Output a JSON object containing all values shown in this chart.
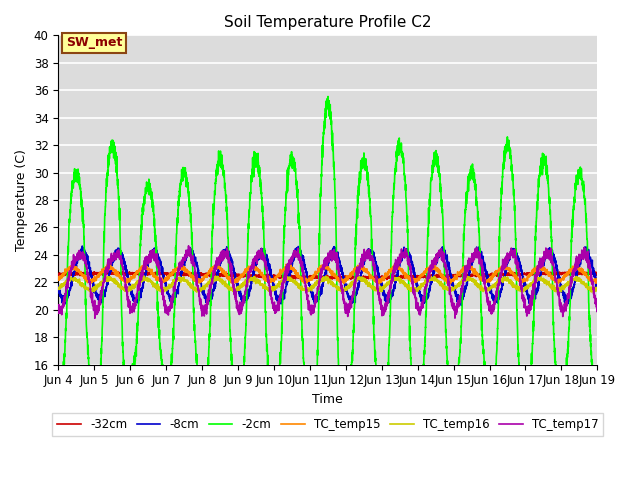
{
  "title": "Soil Temperature Profile C2",
  "xlabel": "Time",
  "ylabel": "Temperature (C)",
  "ylim": [
    16,
    40
  ],
  "xlim": [
    0,
    360
  ],
  "background_color": "#dcdcdc",
  "grid_color": "#ffffff",
  "annotation_text": "SW_met",
  "annotation_bg": "#ffff99",
  "annotation_border": "#8b4513",
  "tick_labels": [
    "Jun 4",
    "Jun 5",
    "Jun 6",
    "Jun 7",
    "Jun 8",
    "Jun 9",
    "Jun 10",
    "Jun 11",
    "Jun 12",
    "Jun 13",
    "Jun 14",
    "Jun 15",
    "Jun 16",
    "Jun 17",
    "Jun 18",
    "Jun 19"
  ],
  "tick_positions": [
    0,
    24,
    48,
    72,
    96,
    120,
    144,
    168,
    192,
    216,
    240,
    264,
    288,
    312,
    336,
    360
  ],
  "series": {
    "-32cm": {
      "color": "#cc0000",
      "linewidth": 1.2
    },
    "-8cm": {
      "color": "#0000cc",
      "linewidth": 1.2
    },
    "-2cm": {
      "color": "#00ff00",
      "linewidth": 1.2
    },
    "TC_temp15": {
      "color": "#ff8800",
      "linewidth": 1.2
    },
    "TC_temp16": {
      "color": "#cccc00",
      "linewidth": 1.2
    },
    "TC_temp17": {
      "color": "#aa00aa",
      "linewidth": 1.2
    }
  }
}
